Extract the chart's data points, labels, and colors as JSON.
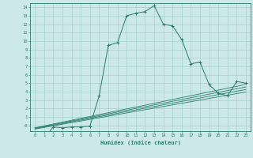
{
  "title": "",
  "xlabel": "Humidex (Indice chaleur)",
  "ylabel": "",
  "bg_color": "#cce8e8",
  "grid_color": "#99cccc",
  "line_color": "#2a7d6e",
  "xlim": [
    -0.5,
    23.5
  ],
  "ylim": [
    -0.7,
    14.5
  ],
  "xtick_vals": [
    0,
    1,
    2,
    3,
    4,
    5,
    6,
    7,
    8,
    9,
    10,
    11,
    12,
    13,
    14,
    15,
    16,
    17,
    18,
    19,
    20,
    21,
    22,
    23
  ],
  "ytick_vals": [
    14,
    13,
    12,
    11,
    10,
    9,
    8,
    7,
    6,
    5,
    4,
    3,
    2,
    1,
    0
  ],
  "ytick_labels": [
    "14",
    "13",
    "12",
    "11",
    "10",
    "9",
    "8",
    "7",
    "6",
    "5",
    "4",
    "3",
    "2",
    "1",
    "-0"
  ],
  "main_x": [
    0,
    1,
    2,
    3,
    4,
    5,
    6,
    7,
    8,
    9,
    10,
    11,
    12,
    13,
    14,
    15,
    16,
    17,
    18,
    19,
    20,
    21,
    22,
    23
  ],
  "main_y": [
    -1.0,
    -1.5,
    -0.2,
    -0.3,
    -0.2,
    -0.2,
    -0.1,
    3.5,
    9.5,
    9.8,
    13.0,
    13.3,
    13.5,
    14.2,
    12.0,
    11.8,
    10.2,
    7.3,
    7.5,
    4.8,
    3.8,
    3.5,
    5.2,
    5.0
  ],
  "linear_lines": [
    {
      "x": [
        0,
        23
      ],
      "y": [
        -0.3,
        4.85
      ]
    },
    {
      "x": [
        0,
        23
      ],
      "y": [
        -0.35,
        4.55
      ]
    },
    {
      "x": [
        0,
        23
      ],
      "y": [
        -0.4,
        4.25
      ]
    },
    {
      "x": [
        0,
        23
      ],
      "y": [
        -0.45,
        3.95
      ]
    }
  ]
}
